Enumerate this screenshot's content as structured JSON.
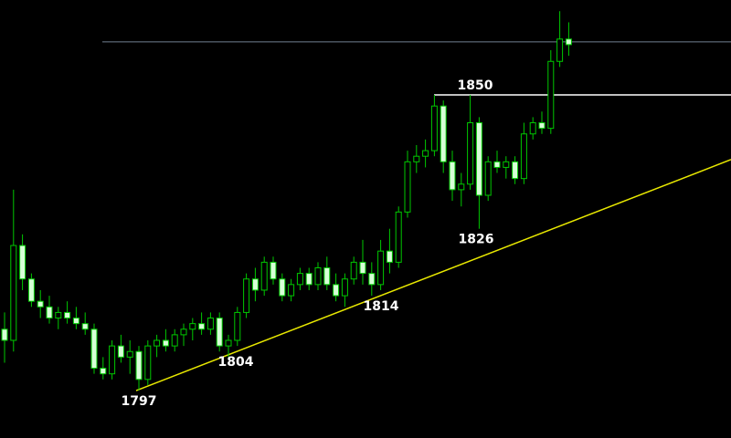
{
  "chart_data": {
    "type": "candlestick",
    "open": [
      1808,
      1806,
      1823,
      1817,
      1813,
      1812,
      1810,
      1811,
      1810,
      1809,
      1808,
      1801,
      1800,
      1805,
      1803,
      1804,
      1799,
      1805,
      1806,
      1805,
      1807,
      1808,
      1809,
      1808,
      1810,
      1805,
      1806,
      1811,
      1817,
      1815,
      1820,
      1817,
      1814,
      1816,
      1818,
      1816,
      1819,
      1816,
      1814,
      1817,
      1820,
      1818,
      1816,
      1822,
      1820,
      1829,
      1838,
      1839,
      1840,
      1848,
      1838,
      1833,
      1834,
      1845,
      1832,
      1838,
      1837,
      1838,
      1835,
      1843,
      1845,
      1844,
      1856,
      1860
    ],
    "high": [
      1811,
      1833,
      1825,
      1818,
      1815,
      1814,
      1812,
      1813,
      1812,
      1811,
      1809,
      1803,
      1806,
      1807,
      1806,
      1805,
      1806,
      1807,
      1808,
      1808,
      1809,
      1810,
      1811,
      1811,
      1811,
      1807,
      1812,
      1818,
      1819,
      1821,
      1821,
      1818,
      1817,
      1819,
      1819,
      1820,
      1821,
      1818,
      1818,
      1821,
      1824,
      1820,
      1824,
      1826,
      1830,
      1840,
      1841,
      1842,
      1850,
      1849,
      1840,
      1836,
      1850,
      1846,
      1839,
      1840,
      1839,
      1839,
      1845,
      1846,
      1847,
      1858,
      1865,
      1863
    ],
    "low": [
      1802,
      1804,
      1815,
      1812,
      1810,
      1809,
      1808,
      1809,
      1808,
      1807,
      1800,
      1799,
      1799,
      1802,
      1800,
      1797,
      1798,
      1803,
      1804,
      1804,
      1805,
      1806,
      1807,
      1807,
      1804,
      1803,
      1805,
      1810,
      1813,
      1814,
      1816,
      1813,
      1813,
      1815,
      1815,
      1815,
      1815,
      1813,
      1812,
      1816,
      1816,
      1814,
      1815,
      1818,
      1819,
      1828,
      1836,
      1837,
      1839,
      1836,
      1831,
      1830,
      1833,
      1826,
      1831,
      1836,
      1835,
      1834,
      1834,
      1842,
      1843,
      1843,
      1855,
      1857
    ],
    "close": [
      1806,
      1823,
      1817,
      1813,
      1812,
      1810,
      1811,
      1810,
      1809,
      1808,
      1801,
      1800,
      1805,
      1803,
      1804,
      1799,
      1805,
      1806,
      1805,
      1807,
      1808,
      1809,
      1808,
      1810,
      1805,
      1806,
      1811,
      1817,
      1815,
      1820,
      1817,
      1814,
      1816,
      1818,
      1816,
      1819,
      1816,
      1814,
      1817,
      1820,
      1818,
      1816,
      1822,
      1820,
      1829,
      1838,
      1839,
      1840,
      1848,
      1838,
      1833,
      1834,
      1845,
      1832,
      1838,
      1837,
      1838,
      1835,
      1843,
      1845,
      1844,
      1856,
      1860,
      1859
    ],
    "up_color": "#00c800",
    "down_color": "#d8ffd8",
    "wick_color": "#00c800",
    "ylim": [
      1788.5,
      1867
    ],
    "trendline": {
      "values": [
        1797,
        1838.4
      ],
      "color": "#e8e800"
    },
    "levels": [
      {
        "value": 1850,
        "color": "#ffffff"
      },
      {
        "value": 1859.5,
        "color": "#6f8090"
      }
    ],
    "annotations": [
      1797,
      1804,
      1814,
      1826,
      1850
    ]
  }
}
